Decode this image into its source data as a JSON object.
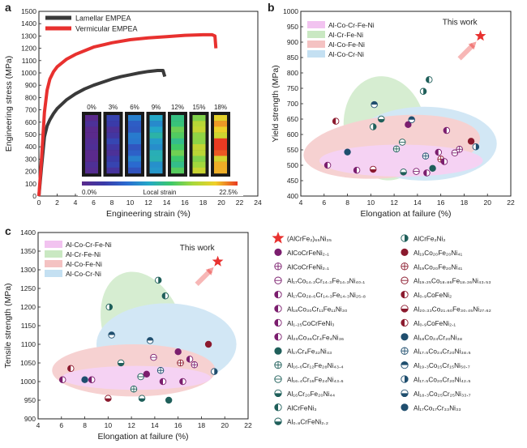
{
  "colors": {
    "lamellar": "#3a3a3a",
    "vermicular": "#e8312f",
    "star": "#e8312f",
    "dark_purple": "#7b1e6e",
    "dark_red": "#8b1a2e",
    "teal": "#1f5f5a",
    "navy": "#1f4e6e",
    "ellipse_AlCoCrFeNi": "#f2c3f0",
    "ellipse_AlCrFeNi": "#c9e8c2",
    "ellipse_AlCoFeNi": "#f4c2c2",
    "ellipse_AlCoCrNi": "#c4e0f2"
  },
  "panel_labels": {
    "a": "a",
    "b": "b",
    "c": "c"
  },
  "chart_data": [
    {
      "id": "a",
      "type": "line",
      "xlabel": "Engineering strain (%)",
      "ylabel": "Engineering stress (MPa)",
      "xlim": [
        0,
        24
      ],
      "ylim": [
        0,
        1500
      ],
      "xticks": [
        0,
        2,
        4,
        6,
        8,
        10,
        12,
        14,
        16,
        18,
        20,
        22,
        24
      ],
      "yticks": [
        0,
        100,
        200,
        300,
        400,
        500,
        600,
        700,
        800,
        900,
        1000,
        1100,
        1200,
        1300,
        1400,
        1500
      ],
      "legend_position": "top-left",
      "series": [
        {
          "name": "Lamellar EMPEA",
          "color_key": "lamellar",
          "x": [
            0,
            0.3,
            0.6,
            0.9,
            1.2,
            1.6,
            2,
            3,
            4,
            5,
            6,
            7,
            8,
            9,
            10,
            11,
            12,
            13,
            13.6,
            13.8
          ],
          "y": [
            0,
            250,
            480,
            570,
            620,
            670,
            710,
            780,
            830,
            870,
            900,
            925,
            950,
            970,
            985,
            1000,
            1012,
            1020,
            1020,
            970
          ]
        },
        {
          "name": "Vermicular EMPEA",
          "color_key": "vermicular",
          "x": [
            0,
            0.3,
            0.6,
            0.9,
            1.2,
            1.6,
            2,
            3,
            4,
            5,
            6,
            8,
            10,
            12,
            14,
            16,
            18,
            19,
            19.3,
            19.4
          ],
          "y": [
            0,
            320,
            680,
            860,
            950,
            1010,
            1050,
            1110,
            1150,
            1180,
            1210,
            1245,
            1270,
            1285,
            1295,
            1305,
            1310,
            1310,
            1300,
            1200
          ]
        }
      ],
      "inset": {
        "strain_labels": [
          "0%",
          "3%",
          "6%",
          "9%",
          "12%",
          "15%",
          "18%"
        ],
        "colorbar_min": "0.0%",
        "colorbar_label": "Local strain",
        "colorbar_max": "22.5%",
        "levels": [
          0.0,
          0.12,
          0.28,
          0.42,
          0.58,
          0.72,
          0.85
        ]
      }
    },
    {
      "id": "b",
      "type": "scatter",
      "xlabel": "Elongation at failure (%)",
      "ylabel": "Yield strength (MPa)",
      "xlim": [
        4,
        22
      ],
      "ylim": [
        400,
        1000
      ],
      "xticks": [
        4,
        6,
        8,
        10,
        12,
        14,
        16,
        18,
        20,
        22
      ],
      "yticks": [
        400,
        450,
        500,
        550,
        600,
        650,
        700,
        750,
        800,
        850,
        900,
        950,
        1000
      ],
      "legend_position": "top-left",
      "legend": [
        {
          "label": "Al-Co-Cr-Fe-Ni",
          "color_key": "ellipse_AlCoCrFeNi"
        },
        {
          "label": "Al-Cr-Fe-Ni",
          "color_key": "ellipse_AlCrFeNi"
        },
        {
          "label": "Al-Co-Fe-Ni",
          "color_key": "ellipse_AlCoFeNi"
        },
        {
          "label": "Al-Co-Cr-Ni",
          "color_key": "ellipse_AlCoCrNi"
        }
      ],
      "annotation": {
        "text": "This work",
        "x": 19.4,
        "y": 920
      },
      "points": [
        {
          "x": 19.4,
          "y": 920,
          "marker": "star"
        },
        {
          "x": 6.3,
          "y": 500,
          "marker": "half-left",
          "color_key": "dark_purple"
        },
        {
          "x": 7.0,
          "y": 643,
          "marker": "half-left",
          "color_key": "dark_red"
        },
        {
          "x": 8.8,
          "y": 484,
          "marker": "half-left",
          "color_key": "dark_purple"
        },
        {
          "x": 8.0,
          "y": 543,
          "marker": "filled",
          "color_key": "navy"
        },
        {
          "x": 10.2,
          "y": 487,
          "marker": "half-bottom",
          "color_key": "dark_red"
        },
        {
          "x": 10.2,
          "y": 625,
          "marker": "half-right",
          "color_key": "teal"
        },
        {
          "x": 10.3,
          "y": 697,
          "marker": "half-top",
          "color_key": "navy"
        },
        {
          "x": 10.9,
          "y": 650,
          "marker": "half-bottom",
          "color_key": "teal"
        },
        {
          "x": 12.2,
          "y": 553,
          "marker": "cross",
          "color_key": "teal"
        },
        {
          "x": 12.7,
          "y": 575,
          "marker": "minus",
          "color_key": "teal"
        },
        {
          "x": 12.8,
          "y": 478,
          "marker": "half-bottom",
          "color_key": "teal"
        },
        {
          "x": 13.2,
          "y": 632,
          "marker": "filled",
          "color_key": "dark_purple"
        },
        {
          "x": 13.5,
          "y": 648,
          "marker": "half-top",
          "color_key": "navy"
        },
        {
          "x": 13.9,
          "y": 480,
          "marker": "minus",
          "color_key": "dark_purple"
        },
        {
          "x": 14.5,
          "y": 740,
          "marker": "half-right",
          "color_key": "teal"
        },
        {
          "x": 14.7,
          "y": 530,
          "marker": "cross",
          "color_key": "navy"
        },
        {
          "x": 14.8,
          "y": 475,
          "marker": "half-left",
          "color_key": "dark_purple"
        },
        {
          "x": 15.0,
          "y": 778,
          "marker": "half-left",
          "color_key": "teal"
        },
        {
          "x": 15.3,
          "y": 490,
          "marker": "filled",
          "color_key": "teal"
        },
        {
          "x": 15.8,
          "y": 542,
          "marker": "half-left",
          "color_key": "dark_purple"
        },
        {
          "x": 16.0,
          "y": 520,
          "marker": "cross",
          "color_key": "dark_red"
        },
        {
          "x": 16.3,
          "y": 512,
          "marker": "half-left",
          "color_key": "dark_purple"
        },
        {
          "x": 16.5,
          "y": 613,
          "marker": "half-left",
          "color_key": "dark_purple"
        },
        {
          "x": 17.2,
          "y": 540,
          "marker": "minus",
          "color_key": "dark_purple"
        },
        {
          "x": 17.6,
          "y": 552,
          "marker": "cross",
          "color_key": "dark_purple"
        },
        {
          "x": 18.6,
          "y": 578,
          "marker": "filled",
          "color_key": "dark_red"
        },
        {
          "x": 19.0,
          "y": 560,
          "marker": "half-right",
          "color_key": "navy"
        }
      ]
    },
    {
      "id": "c",
      "type": "scatter",
      "xlabel": "Elongation at failure (%)",
      "ylabel": "Tensile strength (MPa)",
      "xlim": [
        4,
        22
      ],
      "ylim": [
        900,
        1400
      ],
      "xticks": [
        4,
        6,
        8,
        10,
        12,
        14,
        16,
        18,
        20,
        22
      ],
      "yticks": [
        900,
        950,
        1000,
        1050,
        1100,
        1150,
        1200,
        1250,
        1300,
        1350,
        1400
      ],
      "legend_position": "top-left",
      "legend": [
        {
          "label": "Al-Co-Cr-Fe-Ni",
          "color_key": "ellipse_AlCoCrFeNi"
        },
        {
          "label": "Al-Cr-Fe-Ni",
          "color_key": "ellipse_AlCrFeNi"
        },
        {
          "label": "Al-Co-Fe-Ni",
          "color_key": "ellipse_AlCoFeNi"
        },
        {
          "label": "Al-Co-Cr-Ni",
          "color_key": "ellipse_AlCoCrNi"
        }
      ],
      "annotation": {
        "text": "This work",
        "x": 19.4,
        "y": 1322
      },
      "points": [
        {
          "x": 19.4,
          "y": 1322,
          "marker": "star"
        },
        {
          "x": 6.1,
          "y": 1005,
          "marker": "half-left",
          "color_key": "dark_purple"
        },
        {
          "x": 6.8,
          "y": 1035,
          "marker": "half-left",
          "color_key": "dark_red"
        },
        {
          "x": 8.0,
          "y": 1005,
          "marker": "filled",
          "color_key": "navy"
        },
        {
          "x": 8.6,
          "y": 1005,
          "marker": "half-left",
          "color_key": "dark_purple"
        },
        {
          "x": 10.0,
          "y": 955,
          "marker": "half-bottom",
          "color_key": "dark_red"
        },
        {
          "x": 10.1,
          "y": 1200,
          "marker": "half-right",
          "color_key": "teal"
        },
        {
          "x": 10.3,
          "y": 1125,
          "marker": "half-top",
          "color_key": "navy"
        },
        {
          "x": 11.1,
          "y": 1050,
          "marker": "half-bottom",
          "color_key": "teal"
        },
        {
          "x": 12.2,
          "y": 980,
          "marker": "cross",
          "color_key": "teal"
        },
        {
          "x": 12.8,
          "y": 1013,
          "marker": "minus",
          "color_key": "teal"
        },
        {
          "x": 12.9,
          "y": 955,
          "marker": "half-bottom",
          "color_key": "teal"
        },
        {
          "x": 13.3,
          "y": 1020,
          "marker": "filled",
          "color_key": "dark_purple"
        },
        {
          "x": 13.6,
          "y": 1110,
          "marker": "half-top",
          "color_key": "navy"
        },
        {
          "x": 13.9,
          "y": 1065,
          "marker": "minus",
          "color_key": "dark_purple"
        },
        {
          "x": 14.3,
          "y": 1272,
          "marker": "half-right",
          "color_key": "teal"
        },
        {
          "x": 14.5,
          "y": 1030,
          "marker": "cross",
          "color_key": "navy"
        },
        {
          "x": 14.7,
          "y": 1000,
          "marker": "half-left",
          "color_key": "dark_purple"
        },
        {
          "x": 14.9,
          "y": 1230,
          "marker": "half-left",
          "color_key": "teal"
        },
        {
          "x": 15.2,
          "y": 950,
          "marker": "filled",
          "color_key": "teal"
        },
        {
          "x": 16.0,
          "y": 1080,
          "marker": "filled",
          "color_key": "dark_purple"
        },
        {
          "x": 16.2,
          "y": 1050,
          "marker": "cross",
          "color_key": "dark_red"
        },
        {
          "x": 16.4,
          "y": 1000,
          "marker": "half-left",
          "color_key": "dark_purple"
        },
        {
          "x": 17.0,
          "y": 1060,
          "marker": "half-left",
          "color_key": "dark_purple"
        },
        {
          "x": 17.4,
          "y": 1045,
          "marker": "cross",
          "color_key": "dark_purple"
        },
        {
          "x": 18.6,
          "y": 1100,
          "marker": "filled",
          "color_key": "dark_red"
        },
        {
          "x": 19.1,
          "y": 1027,
          "marker": "half-right",
          "color_key": "navy"
        }
      ]
    }
  ],
  "composition_legend": [
    {
      "label": "(AlCrFe₂)₆₅Ni₃₅",
      "marker": "star",
      "color_key": "star"
    },
    {
      "label": "AlCoCrFeNi₂.₁",
      "marker": "filled",
      "color_key": "dark_purple"
    },
    {
      "label": "AlCoCrFeNi₂.₁",
      "marker": "cross",
      "color_key": "dark_purple"
    },
    {
      "label": "Al₁₇Co₁₄.₃Cr₁₄.₃Fe₁₄.₃Ni₄₀.₁",
      "marker": "minus",
      "color_key": "dark_purple"
    },
    {
      "label": "Al₁₇Co₂₈.₆Cr₁₄.₃Fe₁₄.₃Ni₂₅.₈",
      "marker": "half-left",
      "color_key": "dark_purple"
    },
    {
      "label": "Al₁₈Co₃₀Cr₁₁Fe₁₁Ni₃₀",
      "marker": "half-left",
      "color_key": "dark_purple"
    },
    {
      "label": "Al₁.₂₅CoCrFeNi₃",
      "marker": "half-left",
      "color_key": "dark_purple"
    },
    {
      "label": "Al₂₀Co₃₆Cr₄Fe₄Ni₃₆",
      "marker": "half-left",
      "color_key": "dark_purple"
    },
    {
      "label": "Al₁₇Cr₈Fe₃₂Ni₄₃",
      "marker": "filled",
      "color_key": "teal"
    },
    {
      "label": "Al₁₆.₆Cr₁₂Fe₂₈Ni₄₃.₄",
      "marker": "cross",
      "color_key": "teal"
    },
    {
      "label": "Al₁₆.₄Cr₁₆Fe₂₄Ni₄₃.₆",
      "marker": "minus",
      "color_key": "teal"
    },
    {
      "label": "Al₁₆Cr₂₀Fe₂₀Ni₄₄",
      "marker": "half-bottom",
      "color_key": "teal"
    },
    {
      "label": "AlCrFeNi₃",
      "marker": "half-left",
      "color_key": "teal"
    },
    {
      "label": "Al₀.₈CrFeNi₂.₂",
      "marker": "half-bottom",
      "color_key": "teal"
    },
    {
      "label": "AlCrFe₂Ni₂",
      "marker": "half-right",
      "color_key": "teal"
    },
    {
      "label": "Al₁₉Co₂₀Fe₂₀Ni₄₁",
      "marker": "filled",
      "color_key": "dark_red"
    },
    {
      "label": "Al₁₉Co₂₀Fe₂₀Ni₄₁",
      "marker": "cross",
      "color_key": "dark_red"
    },
    {
      "label": "Al₁₉.₂₅Co₁₈.₈₆Fe₁₈.₃₆Ni₄₃.₅₃",
      "marker": "minus",
      "color_key": "dark_red"
    },
    {
      "label": "Al₀.₉CoFeNi₂",
      "marker": "half-left",
      "color_key": "dark_red"
    },
    {
      "label": "Al₂₀.₃₃Co₂₁.₆₀Fe₃₀.₄₅Ni₂₇.₆₂",
      "marker": "half-bottom",
      "color_key": "dark_red"
    },
    {
      "label": "Al₀.₉CoFeNi₂.₁",
      "marker": "half-left",
      "color_key": "dark_red"
    },
    {
      "label": "Al₁₈Co₂₄Cr₂₀Ni₃₈",
      "marker": "filled",
      "color_key": "navy"
    },
    {
      "label": "Al₁₇.₅Co₂₄Cr₂₀Ni₃₈.₅",
      "marker": "cross",
      "color_key": "navy"
    },
    {
      "label": "Al₁₉.₃Co₁₅Cr₁₅Ni₅₀.₇",
      "marker": "half-top",
      "color_key": "navy"
    },
    {
      "label": "Al₁₇.₅Co₂₀Cr₂₀Ni₄₂.₅",
      "marker": "half-right",
      "color_key": "navy"
    },
    {
      "label": "Al₁₈.₃Co₂₅Cr₂₅Ni₃₃.₇",
      "marker": "half-bottom",
      "color_key": "navy"
    },
    {
      "label": "Al₁₇Co₁₇Cr₃₃Ni₃₃",
      "marker": "filled",
      "color_key": "navy"
    }
  ]
}
